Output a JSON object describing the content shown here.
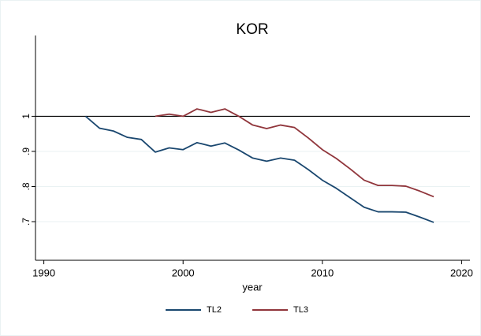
{
  "chart_data": {
    "type": "line",
    "title": "KOR",
    "x_label": "year",
    "x": [
      1993,
      1994,
      1995,
      1996,
      1997,
      1998,
      1999,
      2000,
      2001,
      2002,
      2003,
      2004,
      2005,
      2006,
      2007,
      2008,
      2009,
      2010,
      2011,
      2012,
      2013,
      2014,
      2015,
      2016,
      2017,
      2018
    ],
    "series": [
      {
        "name": "TL2",
        "color": "#1a476f",
        "values": [
          1.0,
          0.966,
          0.958,
          0.94,
          0.934,
          0.898,
          0.91,
          0.905,
          0.925,
          0.915,
          0.924,
          0.904,
          0.881,
          0.872,
          0.881,
          0.875,
          0.848,
          0.818,
          0.795,
          0.768,
          0.741,
          0.728,
          0.728,
          0.727,
          0.713,
          0.698
        ]
      },
      {
        "name": "TL3",
        "color": "#90353b",
        "values": [
          null,
          null,
          null,
          null,
          null,
          1.0,
          1.006,
          1.0,
          1.021,
          1.011,
          1.021,
          1.0,
          0.975,
          0.965,
          0.975,
          0.968,
          0.938,
          0.905,
          0.88,
          0.85,
          0.818,
          0.803,
          0.803,
          0.801,
          0.787,
          0.771
        ]
      }
    ],
    "xlim": [
      1989.4,
      2020.6
    ],
    "xticks": [
      1990,
      2000,
      2010,
      2020
    ],
    "ylim": [
      0.59,
      1.23
    ],
    "yticks": [
      {
        "value": 0.7,
        "label": ".7"
      },
      {
        "value": 0.8,
        "label": ".8"
      },
      {
        "value": 0.9,
        "label": ".9"
      },
      1
    ],
    "yline": 1,
    "grid": true,
    "legend": "bottom"
  }
}
